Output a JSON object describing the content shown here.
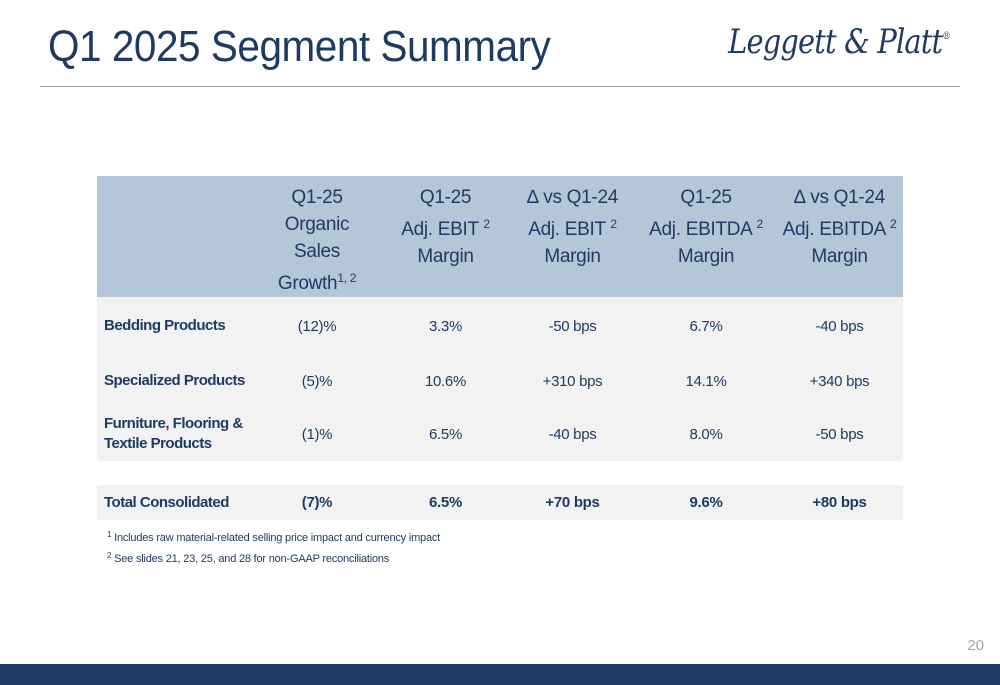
{
  "title": "Q1 2025 Segment Summary",
  "logo": {
    "text": "Leggett & Platt",
    "mark": "®"
  },
  "table": {
    "headers": [
      {
        "lines": [
          ""
        ],
        "sup": ""
      },
      {
        "lines": [
          "Q1-25",
          "Organic",
          "Sales",
          "Growth"
        ],
        "sup": "1, 2"
      },
      {
        "lines": [
          "Q1-25",
          "Adj. EBIT",
          "Margin"
        ],
        "sup": "2"
      },
      {
        "lines": [
          "∆ vs Q1-24",
          "Adj. EBIT",
          "Margin"
        ],
        "sup": "2"
      },
      {
        "lines": [
          "Q1-25",
          "Adj. EBITDA",
          "Margin"
        ],
        "sup": "2"
      },
      {
        "lines": [
          "∆ vs Q1-24",
          "Adj. EBITDA",
          "Margin"
        ],
        "sup": "2"
      }
    ],
    "rows": [
      {
        "segment": [
          "Bedding Products"
        ],
        "values": [
          "(12)%",
          "3.3%",
          "-50 bps",
          "6.7%",
          "-40 bps"
        ]
      },
      {
        "segment": [
          "Specialized Products"
        ],
        "values": [
          "(5)%",
          "10.6%",
          "+310 bps",
          "14.1%",
          "+340 bps"
        ]
      },
      {
        "segment": [
          "Furniture, Flooring &",
          "Textile Products"
        ],
        "values": [
          "(1)%",
          "6.5%",
          "-40 bps",
          "8.0%",
          "-50 bps"
        ]
      }
    ],
    "total": {
      "segment": "Total Consolidated",
      "values": [
        "(7)%",
        "6.5%",
        "+70 bps",
        "9.6%",
        "+80 bps"
      ]
    }
  },
  "footnotes": [
    {
      "num": "1",
      "text": "Includes raw material-related selling price impact and currency impact"
    },
    {
      "num": "2",
      "text": "See slides 21, 23, 25, and 28 for non-GAAP reconciliations"
    }
  ],
  "page_number": "20",
  "colors": {
    "navy": "#1f3b63",
    "header_bg": "#b4c7d9",
    "row_bg": "#f2f2f2"
  }
}
